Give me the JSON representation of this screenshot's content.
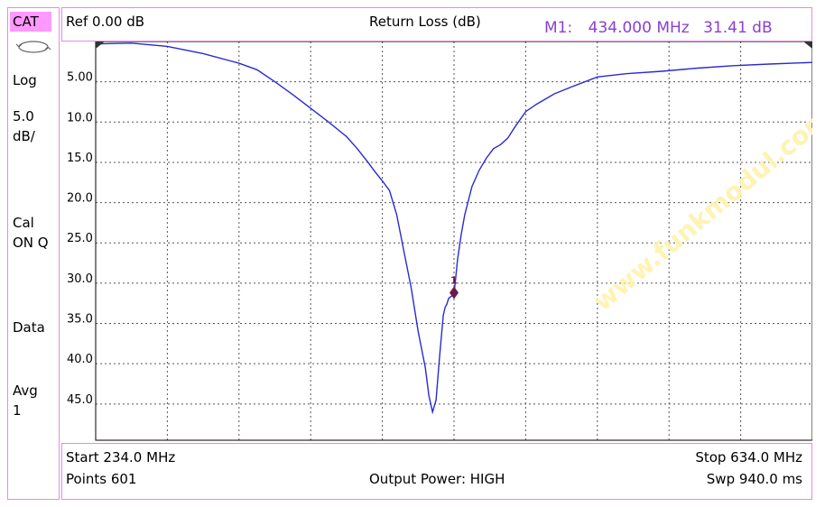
{
  "left_panel": {
    "cat": "CAT",
    "format": "Log",
    "scale_value": "5.0",
    "scale_unit": "dB/",
    "cal_label": "Cal",
    "cal_state": "ON Q",
    "data_label": "Data",
    "avg_label": "Avg",
    "avg_value": "1"
  },
  "header": {
    "ref": "Ref 0.00 dB",
    "title": "Return Loss (dB)",
    "marker_label": "M1:",
    "marker_freq": "434.000 MHz",
    "marker_value": "31.41 dB"
  },
  "footer": {
    "start": "Start 234.0 MHz",
    "stop": "Stop 634.0 MHz",
    "points": "Points 601",
    "output_power": "Output Power: HIGH",
    "sweep": "Swp 940.0 ms"
  },
  "watermark": "www.funkmodul.com",
  "colors": {
    "trace": "#2a2ad0",
    "marker": "#6b1a4a",
    "panel_border": "#e58ae5",
    "cat_badge": "#ff99ff",
    "watermark": "#fff3b0"
  },
  "chart_data": {
    "type": "line",
    "title": "Return Loss (dB)",
    "xlabel": "",
    "ylabel": "",
    "xlim": [
      234.0,
      634.0
    ],
    "ylim": [
      0,
      49.5
    ],
    "y_inverted": true,
    "grid": true,
    "y_ticks": [
      {
        "v": 5,
        "label": "5.00"
      },
      {
        "v": 10,
        "label": "10.0"
      },
      {
        "v": 15,
        "label": "15.0"
      },
      {
        "v": 20,
        "label": "20.0"
      },
      {
        "v": 25,
        "label": "25.0"
      },
      {
        "v": 30,
        "label": "30.0"
      },
      {
        "v": 35,
        "label": "35.0"
      },
      {
        "v": 40,
        "label": "40.0"
      },
      {
        "v": 45,
        "label": "45.0"
      }
    ],
    "series": [
      {
        "x": [
          234,
          254,
          274,
          294,
          314,
          324,
          334,
          344,
          354,
          364,
          374,
          380,
          386,
          390,
          394,
          398,
          402,
          406,
          410,
          414,
          418,
          420,
          422,
          424,
          426,
          428,
          429,
          430,
          431,
          432,
          434,
          436,
          438,
          440,
          444,
          448,
          452,
          456,
          460,
          464,
          468,
          474,
          480,
          490,
          500,
          514,
          530,
          550,
          570,
          590,
          610,
          634
        ],
        "y": [
          0.3,
          0.2,
          0.6,
          1.5,
          2.7,
          3.5,
          5.0,
          6.6,
          8.3,
          10.0,
          11.8,
          13.3,
          15.0,
          16.2,
          17.3,
          18.5,
          21.5,
          26.0,
          30.5,
          36.0,
          40.5,
          44.0,
          46.0,
          44.5,
          39.0,
          34.0,
          33.0,
          32.6,
          31.9,
          31.7,
          31.4,
          27.0,
          24.0,
          21.5,
          18.0,
          16.0,
          14.5,
          13.3,
          12.8,
          12.0,
          10.6,
          8.7,
          7.8,
          6.5,
          5.6,
          4.4,
          4.0,
          3.7,
          3.3,
          3.0,
          2.8,
          2.6
        ]
      }
    ],
    "marker": {
      "label": "1",
      "x": 434.0,
      "y": 31.41
    }
  }
}
